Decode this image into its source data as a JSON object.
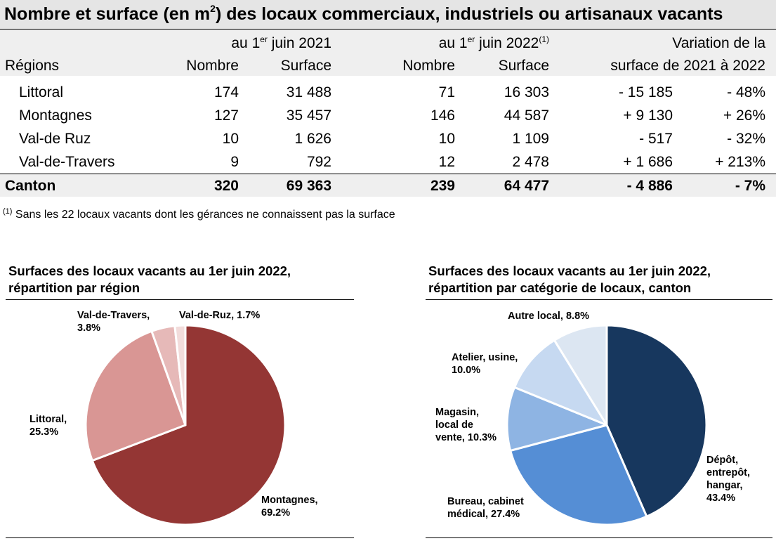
{
  "table": {
    "title_pre": "Nombre et surface (en m",
    "title_sup": "2",
    "title_post": ") des locaux commerciaux, industriels ou artisanaux vacants",
    "header": {
      "period_2021_pre": "au 1",
      "period_2021_sup": "er",
      "period_2021_post": " juin 2021",
      "period_2022_pre": "au 1",
      "period_2022_sup": "er",
      "period_2022_post": " juin 2022",
      "period_2022_note": "(1)",
      "variation_line1": "Variation de la",
      "variation_line2": "surface de 2021 à 2022",
      "regions": "Régions",
      "nombre": "Nombre",
      "surface": "Surface"
    },
    "rows": [
      {
        "region": "Littoral",
        "n2021": "174",
        "s2021": "31 488",
        "n2022": "71",
        "s2022": "16 303",
        "var_abs": "- 15 185",
        "var_pct": "- 48%"
      },
      {
        "region": "Montagnes",
        "n2021": "127",
        "s2021": "35 457",
        "n2022": "146",
        "s2022": "44 587",
        "var_abs": "+ 9 130",
        "var_pct": "+ 26%"
      },
      {
        "region": "Val-de Ruz",
        "n2021": "10",
        "s2021": "1 626",
        "n2022": "10",
        "s2022": "1 109",
        "var_abs": "- 517",
        "var_pct": "- 32%"
      },
      {
        "region": "Val-de-Travers",
        "n2021": "9",
        "s2021": "792",
        "n2022": "12",
        "s2022": "2 478",
        "var_abs": "+ 1 686",
        "var_pct": "+ 213%"
      }
    ],
    "total": {
      "region": "Canton",
      "n2021": "320",
      "s2021": "69 363",
      "n2022": "239",
      "s2022": "64 477",
      "var_abs": "- 4 886",
      "var_pct": "- 7%"
    },
    "footnote_sup": "(1)",
    "footnote_text": " Sans les 22 locaux vacants dont les gérances ne connaissent pas la surface"
  },
  "chart_data": [
    {
      "type": "pie",
      "title_line1": "Surfaces des locaux vacants au 1er juin 2022,",
      "title_line2": "répartition par région",
      "slices": [
        {
          "name": "Montagnes",
          "label_line1": "Montagnes,",
          "label_line2": "69.2%",
          "value": 69.2,
          "color": "#943634"
        },
        {
          "name": "Littoral",
          "label_line1": "Littoral,",
          "label_line2": "25.3%",
          "value": 25.3,
          "color": "#d99694"
        },
        {
          "name": "Val-de-Travers",
          "label_line1": "Val-de-Travers,",
          "label_line2": "3.8%",
          "value": 3.8,
          "color": "#e6b9b8"
        },
        {
          "name": "Val-de-Ruz",
          "label_line1": "Val-de-Ruz, 1.7%",
          "label_line2": "",
          "value": 1.7,
          "color": "#f2dcdb"
        }
      ]
    },
    {
      "type": "pie",
      "title_line1": "Surfaces des locaux vacants au 1er juin 2022,",
      "title_line2": "répartition par catégorie de locaux, canton",
      "slices": [
        {
          "name": "Dépôt, entrepôt, hangar",
          "label_lines": [
            "Dépôt,",
            "entrepôt,",
            "hangar,",
            "43.4%"
          ],
          "value": 43.4,
          "color": "#17375e"
        },
        {
          "name": "Bureau, cabinet médical",
          "label_lines": [
            "Bureau, cabinet",
            "médical, 27.4%"
          ],
          "value": 27.4,
          "color": "#558ed5"
        },
        {
          "name": "Magasin, local de vente",
          "label_lines": [
            "Magasin,",
            "local de",
            "vente, 10.3%"
          ],
          "value": 10.3,
          "color": "#8eb4e3"
        },
        {
          "name": "Atelier, usine",
          "label_lines": [
            "Atelier, usine,",
            "10.0%"
          ],
          "value": 10.0,
          "color": "#c6d9f1"
        },
        {
          "name": "Autre local",
          "label_lines": [
            "Autre local, 8.8%"
          ],
          "value": 8.8,
          "color": "#dce6f2"
        }
      ]
    }
  ]
}
